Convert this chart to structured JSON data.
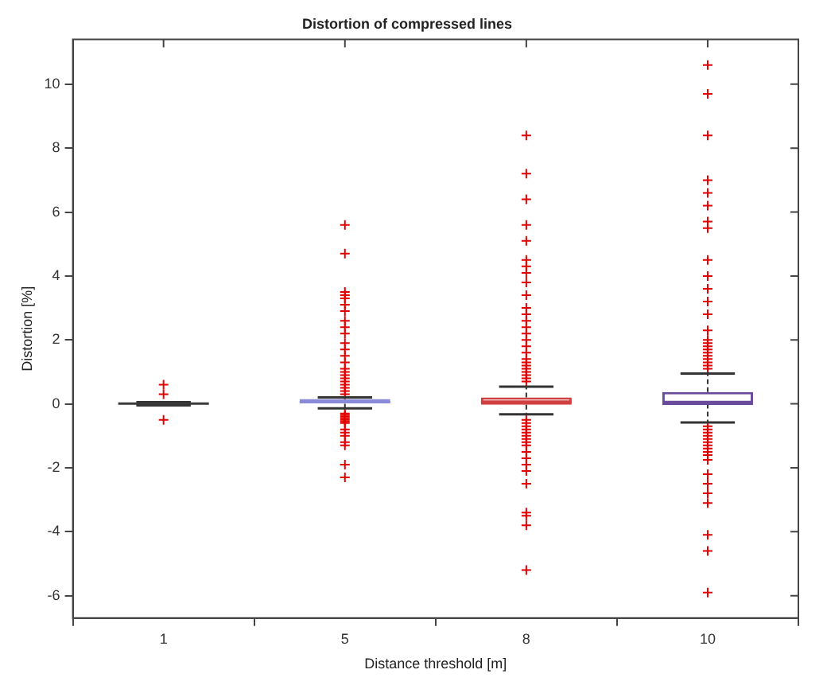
{
  "chart_data": {
    "type": "box",
    "title": "Distortion of compressed lines",
    "xlabel": "Distance threshold [m]",
    "ylabel": "Distortion [%]",
    "categories": [
      "1",
      "5",
      "8",
      "10"
    ],
    "colors": [
      "#3a3a3a",
      "#8a8ad8",
      "#d04040",
      "#6a4a9a"
    ],
    "boxes": [
      {
        "low": -0.05,
        "q1": 0,
        "median": 0.01,
        "q3": 0.03,
        "high": 0.05,
        "outliers": [
          0.6,
          0.3,
          -0.5
        ]
      },
      {
        "low": -0.14,
        "q1": 0,
        "median": 0.05,
        "q3": 0.15,
        "high": 0.2,
        "outliers": [
          5.6,
          4.7,
          3.5,
          3.4,
          3.3,
          3.1,
          2.9,
          2.6,
          2.4,
          2.2,
          1.9,
          1.7,
          1.5,
          1.3,
          1.1,
          1.0,
          0.9,
          0.8,
          0.7,
          0.6,
          0.5,
          0.4,
          0.3,
          -0.3,
          -0.35,
          -0.4,
          -0.45,
          -0.5,
          -0.55,
          -0.6,
          -0.8,
          -0.9,
          -1.0,
          -1.2,
          -1.3,
          -1.9,
          -2.3
        ]
      },
      {
        "low": -0.33,
        "q1": -0.03,
        "median": 0.07,
        "q3": 0.2,
        "high": 0.54,
        "outliers": [
          8.4,
          7.2,
          6.4,
          5.6,
          5.1,
          4.5,
          4.3,
          4.1,
          3.8,
          3.4,
          3.0,
          2.8,
          2.6,
          2.4,
          2.2,
          2.0,
          1.8,
          1.6,
          1.4,
          1.3,
          1.2,
          1.1,
          1.0,
          0.9,
          0.8,
          0.7,
          -0.5,
          -0.6,
          -0.7,
          -0.8,
          -0.9,
          -1.0,
          -1.1,
          -1.2,
          -1.3,
          -1.5,
          -1.7,
          -1.9,
          -2.1,
          -2.5,
          -3.4,
          -3.5,
          -3.8,
          -5.2
        ]
      },
      {
        "low": -0.58,
        "q1": 0,
        "median": 0,
        "q3": 0.37,
        "high": 0.95,
        "outliers": [
          10.6,
          9.7,
          8.4,
          7.0,
          6.6,
          6.2,
          5.7,
          5.5,
          4.5,
          4.0,
          3.6,
          3.2,
          2.8,
          2.3,
          2.0,
          1.9,
          1.8,
          1.7,
          1.6,
          1.5,
          1.4,
          1.3,
          1.2,
          1.1,
          -0.7,
          -0.8,
          -0.9,
          -1.0,
          -1.1,
          -1.2,
          -1.3,
          -1.4,
          -1.5,
          -1.6,
          -1.75,
          -2.2,
          -2.5,
          -2.8,
          -3.1,
          -4.1,
          -4.6,
          -5.9
        ]
      }
    ],
    "marker": "cross",
    "ylim": [
      -6.7,
      11.4
    ],
    "yticks": [
      -6,
      -4,
      -2,
      0,
      2,
      4,
      6,
      8,
      10
    ],
    "grid": false,
    "legend": false
  }
}
